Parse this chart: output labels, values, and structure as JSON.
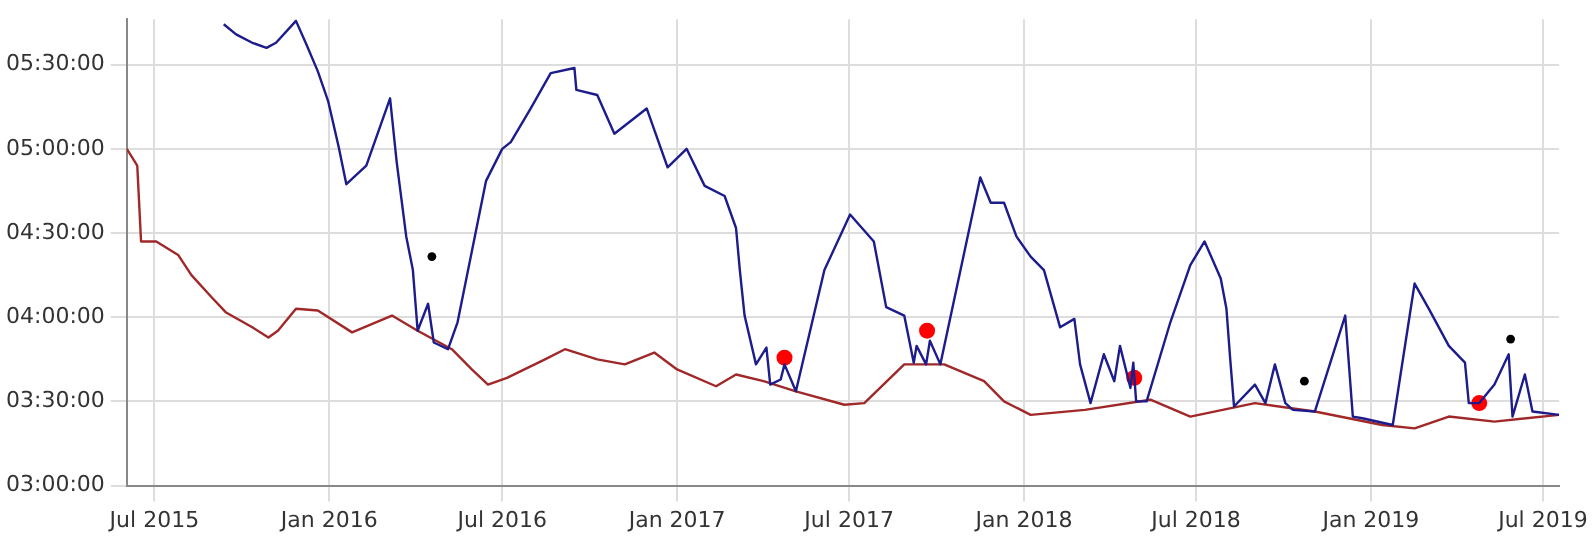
{
  "chart_data": {
    "type": "line",
    "grid": true,
    "legend": false,
    "xlim": [
      "2015-06-02",
      "2019-07-18"
    ],
    "xticks": [
      {
        "value": "2015-07-01",
        "label": "Jul 2015"
      },
      {
        "value": "2016-01-01",
        "label": "Jan 2016"
      },
      {
        "value": "2016-07-01",
        "label": "Jul 2016"
      },
      {
        "value": "2017-01-01",
        "label": "Jan 2017"
      },
      {
        "value": "2017-07-01",
        "label": "Jul 2017"
      },
      {
        "value": "2018-01-01",
        "label": "Jan 2018"
      },
      {
        "value": "2018-07-01",
        "label": "Jul 2018"
      },
      {
        "value": "2019-01-01",
        "label": "Jan 2019"
      },
      {
        "value": "2019-07-01",
        "label": "Jul 2019"
      }
    ],
    "ylim": [
      3,
      5.77
    ],
    "yticks": [
      {
        "value": 3,
        "label": "03:00:00"
      },
      {
        "value": 3.5,
        "label": "03:30:00"
      },
      {
        "value": 4,
        "label": "04:00:00"
      },
      {
        "value": 4.5,
        "label": "04:30:00"
      },
      {
        "value": 5,
        "label": "05:00:00"
      },
      {
        "value": 5.5,
        "label": "05:30:00"
      }
    ],
    "series": [
      {
        "type": "line",
        "color": "#1c1c8c",
        "marker": "none",
        "x": [
          "2015-09-12",
          "2015-09-25",
          "2015-10-12",
          "2015-10-27",
          "2015-11-06",
          "2015-11-27",
          "2015-12-08",
          "2015-12-20",
          "2015-12-31",
          "2016-01-11",
          "2016-01-19",
          "2016-02-09",
          "2016-03-05",
          "2016-03-12",
          "2016-03-22",
          "2016-03-29",
          "2016-04-03",
          "2016-04-14",
          "2016-04-20",
          "2016-05-05",
          "2016-05-15",
          "2016-06-14",
          "2016-07-01",
          "2016-07-10",
          "2016-07-31",
          "2016-08-21",
          "2016-09-15",
          "2016-09-17",
          "2016-10-09",
          "2016-10-27",
          "2016-11-30",
          "2016-12-22",
          "2017-01-11",
          "2017-01-30",
          "2017-02-20",
          "2017-03-04",
          "2017-03-08",
          "2017-03-13",
          "2017-03-25",
          "2017-04-05",
          "2017-04-09",
          "2017-04-20",
          "2017-04-24",
          "2017-05-06",
          "2017-06-05",
          "2017-07-02",
          "2017-07-27",
          "2017-08-09",
          "2017-08-28",
          "2017-09-07",
          "2017-09-10",
          "2017-09-20",
          "2017-09-24",
          "2017-10-05",
          "2017-11-16",
          "2017-11-27",
          "2017-12-11",
          "2017-12-24",
          "2018-01-08",
          "2018-01-22",
          "2018-02-08",
          "2018-02-23",
          "2018-03-01",
          "2018-03-12",
          "2018-03-26",
          "2018-04-06",
          "2018-04-12",
          "2018-04-23",
          "2018-04-26",
          "2018-04-29",
          "2018-05-10",
          "2018-06-04",
          "2018-06-25",
          "2018-07-10",
          "2018-07-27",
          "2018-08-02",
          "2018-08-06",
          "2018-08-10",
          "2018-09-01",
          "2018-09-12",
          "2018-09-22",
          "2018-10-03",
          "2018-10-11",
          "2018-11-03",
          "2018-12-05",
          "2018-12-13",
          "2018-12-23",
          "2019-01-24",
          "2019-02-16",
          "2019-03-03",
          "2019-03-24",
          "2019-04-10",
          "2019-04-14",
          "2019-04-25",
          "2019-05-11",
          "2019-05-26",
          "2019-05-30",
          "2019-06-12",
          "2019-06-20",
          "2019-07-18"
        ],
        "values": [
          5.74,
          5.68,
          5.63,
          5.6,
          5.63,
          5.76,
          5.62,
          5.46,
          5.28,
          5.01,
          4.79,
          4.9,
          5.3,
          4.92,
          4.48,
          4.28,
          3.92,
          4.08,
          3.85,
          3.81,
          3.97,
          4.81,
          5.0,
          5.04,
          5.24,
          5.45,
          5.48,
          5.35,
          5.32,
          5.09,
          5.24,
          4.89,
          5.0,
          4.78,
          4.72,
          4.53,
          4.28,
          4.01,
          3.72,
          3.82,
          3.6,
          3.63,
          3.72,
          3.56,
          4.28,
          4.61,
          4.45,
          4.06,
          4.01,
          3.73,
          3.83,
          3.72,
          3.86,
          3.72,
          4.83,
          4.68,
          4.68,
          4.48,
          4.36,
          4.28,
          3.94,
          3.99,
          3.72,
          3.49,
          3.78,
          3.62,
          3.83,
          3.58,
          3.73,
          3.5,
          3.5,
          3.97,
          4.31,
          4.45,
          4.23,
          4.05,
          3.75,
          3.47,
          3.6,
          3.49,
          3.72,
          3.49,
          3.45,
          3.44,
          4.01,
          3.41,
          3.4,
          3.36,
          4.2,
          4.05,
          3.83,
          3.73,
          3.49,
          3.49,
          3.6,
          3.78,
          3.41,
          3.66,
          3.44,
          3.42
        ]
      },
      {
        "type": "line",
        "color": "#a02828",
        "marker": "none",
        "x": [
          "2015-06-02",
          "2015-06-13",
          "2015-06-17",
          "2015-07-03",
          "2015-07-26",
          "2015-08-09",
          "2015-08-30",
          "2015-09-14",
          "2015-10-12",
          "2015-10-29",
          "2015-11-08",
          "2015-11-27",
          "2015-12-20",
          "2016-01-25",
          "2016-03-07",
          "2016-04-03",
          "2016-05-09",
          "2016-05-30",
          "2016-06-16",
          "2016-07-06",
          "2016-08-15",
          "2016-09-05",
          "2016-10-09",
          "2016-11-07",
          "2016-12-08",
          "2017-01-01",
          "2017-02-11",
          "2017-03-04",
          "2017-04-02",
          "2017-05-06",
          "2017-06-26",
          "2017-07-17",
          "2017-08-28",
          "2017-10-09",
          "2017-11-20",
          "2017-12-11",
          "2018-01-08",
          "2018-03-06",
          "2018-05-14",
          "2018-06-25",
          "2018-09-01",
          "2018-11-03",
          "2019-01-13",
          "2019-02-16",
          "2019-03-24",
          "2019-05-11",
          "2019-07-18"
        ],
        "values": [
          5.0,
          4.9,
          4.45,
          4.45,
          4.37,
          4.25,
          4.12,
          4.03,
          3.94,
          3.88,
          3.92,
          4.05,
          4.04,
          3.91,
          4.01,
          3.92,
          3.81,
          3.69,
          3.6,
          3.64,
          3.75,
          3.81,
          3.75,
          3.72,
          3.79,
          3.69,
          3.59,
          3.66,
          3.62,
          3.56,
          3.48,
          3.49,
          3.72,
          3.72,
          3.62,
          3.5,
          3.42,
          3.45,
          3.51,
          3.41,
          3.49,
          3.44,
          3.36,
          3.34,
          3.41,
          3.38,
          3.42
        ]
      },
      {
        "type": "scatter",
        "color": "#ff0000",
        "marker": "circle",
        "x": [
          "2017-04-24",
          "2017-09-21",
          "2018-04-27",
          "2019-04-25"
        ],
        "values": [
          3.76,
          3.92,
          3.64,
          3.49
        ]
      },
      {
        "type": "scatter",
        "color": "#000000",
        "marker": "circle",
        "x": [
          "2016-04-18",
          "2018-10-23",
          "2019-05-28"
        ],
        "values": [
          4.36,
          3.62,
          3.87
        ]
      }
    ]
  }
}
